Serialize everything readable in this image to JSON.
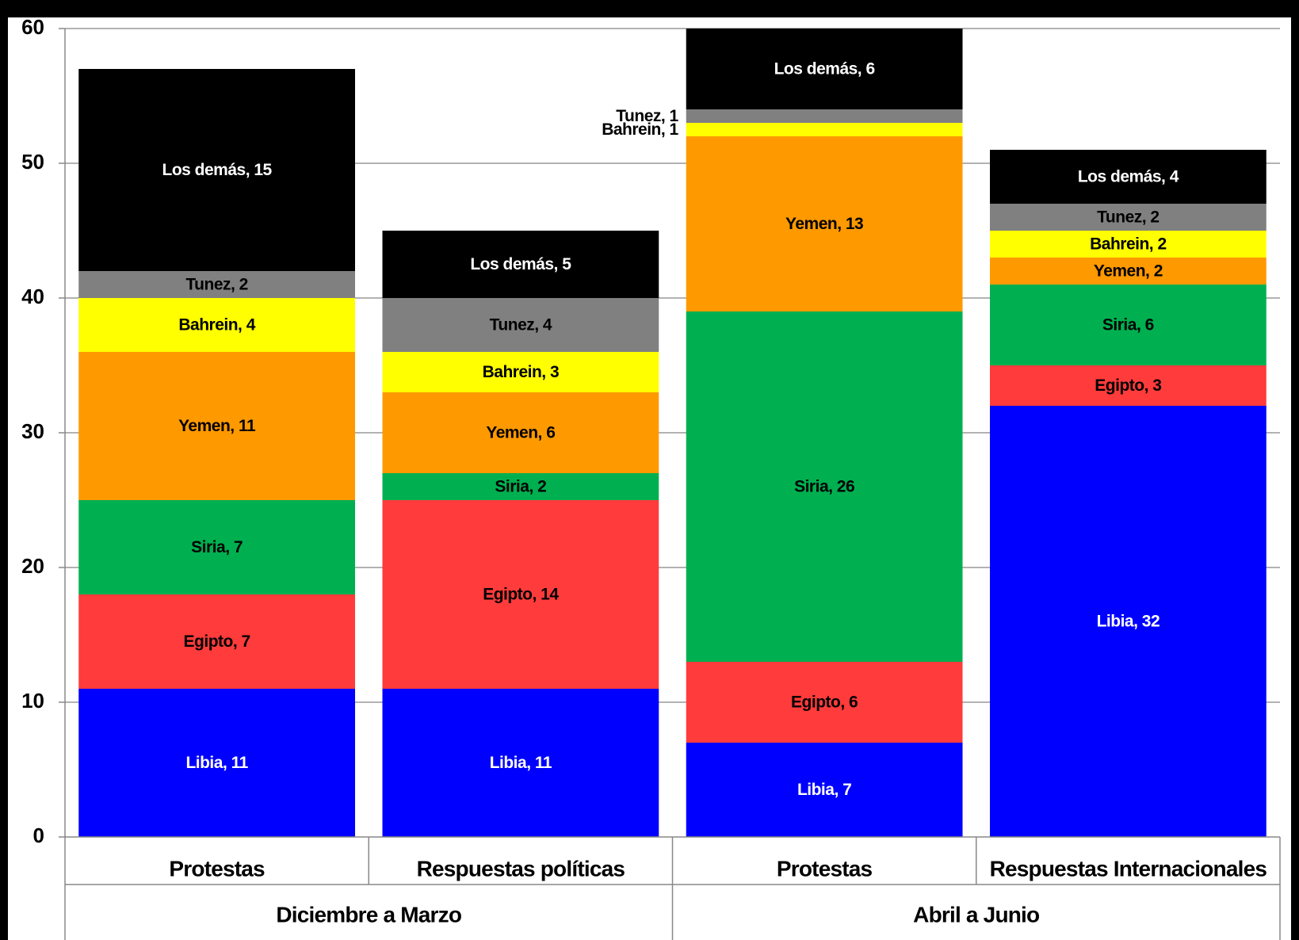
{
  "chart_data": {
    "type": "stacked_bar",
    "categories": [
      "Protestas",
      "Respuestas políticas",
      "Protestas",
      "Respuestas Internacionales"
    ],
    "groups": [
      {
        "name": "Diciembre a Marzo",
        "span": [
          0,
          1
        ]
      },
      {
        "name": "Abril a Junio",
        "span": [
          2,
          3
        ]
      }
    ],
    "series": [
      {
        "name": "Libia",
        "color": "#0000ff",
        "label_color": "#ffffff",
        "values": [
          11,
          11,
          7,
          32
        ],
        "value_labels": [
          "Libia, 11",
          "Libia, 11",
          "Libia, 7",
          "Libia, 32"
        ]
      },
      {
        "name": "Egipto",
        "color": "#ff3b3b",
        "label_color": "#000000",
        "values": [
          7,
          14,
          6,
          3
        ],
        "value_labels": [
          "Egipto, 7",
          "Egipto, 14",
          "Egipto, 6",
          "Egipto, 3"
        ]
      },
      {
        "name": "Siria",
        "color": "#00b050",
        "label_color": "#000000",
        "values": [
          7,
          2,
          26,
          6
        ],
        "value_labels": [
          "Siria, 7",
          "Siria, 2",
          "Siria, 26",
          "Siria, 6"
        ]
      },
      {
        "name": "Yemen",
        "color": "#ff9900",
        "label_color": "#000000",
        "values": [
          11,
          6,
          13,
          2
        ],
        "value_labels": [
          "Yemen, 11",
          "Yemen, 6",
          "Yemen, 13",
          "Yemen, 2"
        ]
      },
      {
        "name": "Bahrein",
        "color": "#ffff00",
        "label_color": "#000000",
        "values": [
          4,
          3,
          1,
          2
        ],
        "value_labels": [
          "Bahrein, 4",
          "Bahrein, 3",
          "Bahrein, 1",
          "Bahrein, 2"
        ]
      },
      {
        "name": "Tunez",
        "color": "#808080",
        "label_color": "#000000",
        "values": [
          2,
          4,
          1,
          2
        ],
        "value_labels": [
          "Tunez, 2",
          "Tunez, 4",
          "Tunez, 1",
          "Tunez, 2"
        ]
      },
      {
        "name": "Los demás",
        "color": "#000000",
        "label_color": "#ffffff",
        "values": [
          15,
          5,
          6,
          4
        ],
        "value_labels": [
          "Los demás, 15",
          "Los demás, 5",
          "Los demás, 6",
          "Los demás, 4"
        ]
      }
    ],
    "ylim": [
      0,
      60
    ],
    "yticks": [
      0,
      10,
      20,
      30,
      40,
      50,
      60
    ],
    "grid": true
  }
}
